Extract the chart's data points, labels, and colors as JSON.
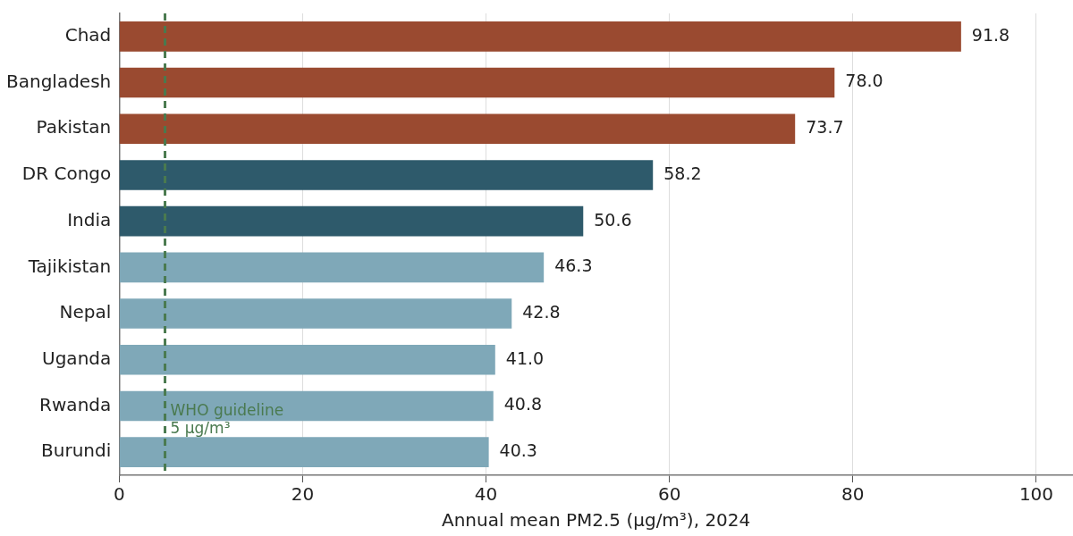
{
  "chart_data": {
    "type": "bar",
    "orientation": "horizontal",
    "categories": [
      "Chad",
      "Bangladesh",
      "Pakistan",
      "DR Congo",
      "India",
      "Tajikistan",
      "Nepal",
      "Uganda",
      "Rwanda",
      "Burundi"
    ],
    "values": [
      91.8,
      78.0,
      73.7,
      58.2,
      50.6,
      46.3,
      42.8,
      41.0,
      40.8,
      40.3
    ],
    "colors": [
      "#9a4a30",
      "#9a4a30",
      "#9a4a30",
      "#2e5a6b",
      "#2e5a6b",
      "#7fa8b8",
      "#7fa8b8",
      "#7fa8b8",
      "#7fa8b8",
      "#7fa8b8"
    ],
    "value_labels": [
      "91.8",
      "78.0",
      "73.7",
      "58.2",
      "50.6",
      "46.3",
      "42.8",
      "41.0",
      "40.8",
      "40.3"
    ],
    "xlabel": "Annual mean PM2.5 (µg/m³), 2024",
    "xlim": [
      0,
      104
    ],
    "xticks": [
      0,
      20,
      40,
      60,
      80,
      100
    ],
    "grid": "x",
    "ref_lines": [
      {
        "axis": "x",
        "value": 5,
        "label": "WHO guideline\n5 µg/m³",
        "color": "#4a7a4f",
        "line_style": "dashed"
      }
    ]
  }
}
